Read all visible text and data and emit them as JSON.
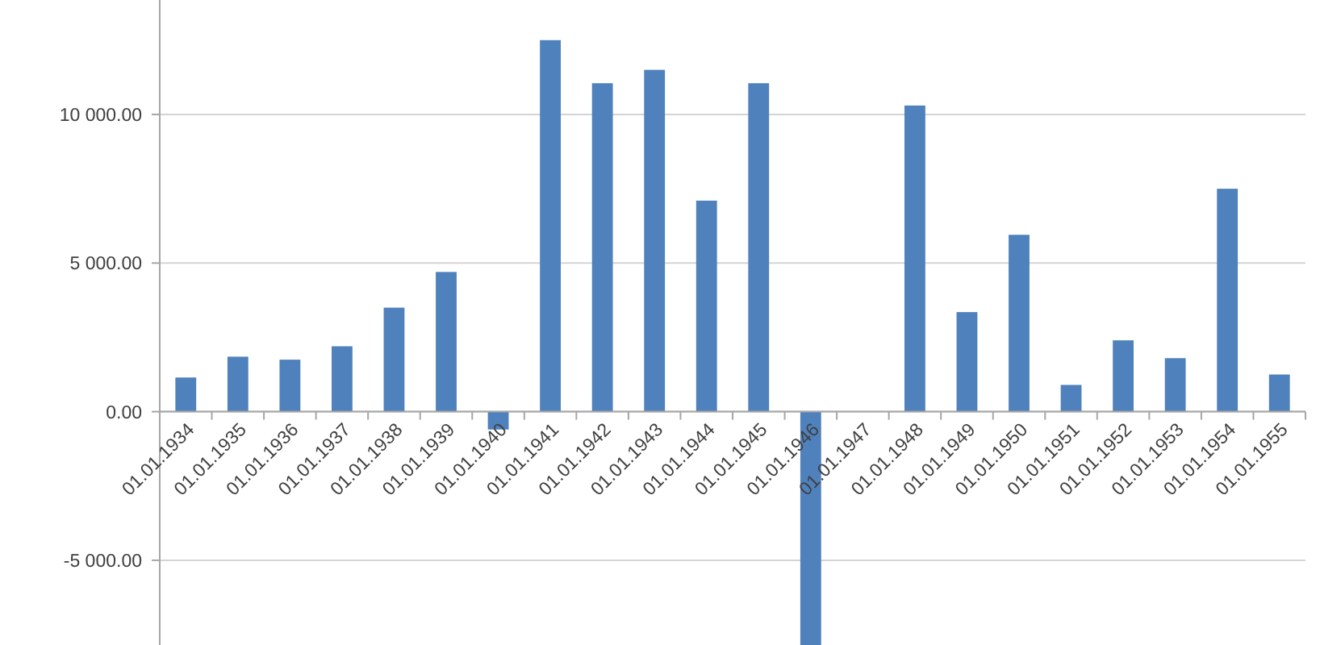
{
  "chart_data": {
    "type": "bar",
    "categories": [
      "01.01.1934",
      "01.01.1935",
      "01.01.1936",
      "01.01.1937",
      "01.01.1938",
      "01.01.1939",
      "01.01.1940",
      "01.01.1941",
      "01.01.1942",
      "01.01.1943",
      "01.01.1944",
      "01.01.1945",
      "01.01.1946",
      "01.01.1947",
      "01.01.1948",
      "01.01.1949",
      "01.01.1950",
      "01.01.1951",
      "01.01.1952",
      "01.01.1953",
      "01.01.1954",
      "01.01.1955"
    ],
    "values": [
      1150,
      1850,
      1750,
      2200,
      3500,
      4700,
      -600,
      12500,
      11050,
      11500,
      7100,
      11050,
      -7850,
      null,
      10300,
      3350,
      5950,
      900,
      2400,
      1800,
      7500,
      1250
    ],
    "color": "#4f81bd",
    "ylim": [
      -7850,
      13850
    ],
    "yticks": [
      {
        "value": -5000,
        "label": "-5 000.00"
      },
      {
        "value": 0,
        "label": "0.00"
      },
      {
        "value": 5000,
        "label": "5 000.00"
      },
      {
        "value": 10000,
        "label": "10 000.00"
      }
    ],
    "grid": "y"
  }
}
